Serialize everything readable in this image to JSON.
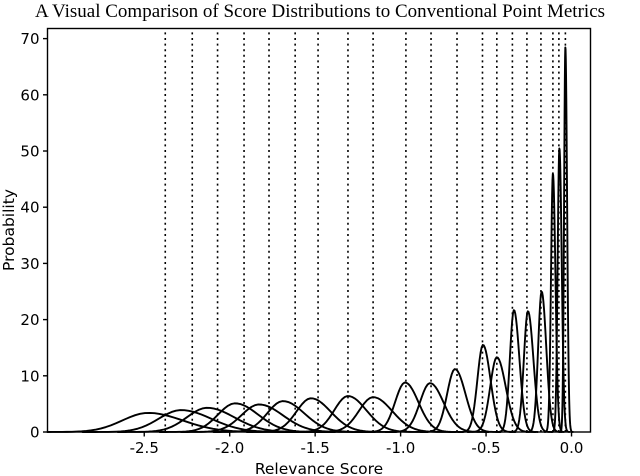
{
  "figure": {
    "title": "A Visual Comparison of Score Distributions to Conventional Point Metrics",
    "x_axis": {
      "label": "Relevance Score",
      "tick_labels": [
        "-2.5",
        "-2.0",
        "-1.5",
        "-1.0",
        "-0.5",
        "0.0"
      ],
      "tick_values": [
        -2.5,
        -2.0,
        -1.5,
        -1.0,
        -0.5,
        0.0
      ]
    },
    "y_axis": {
      "label": "Probability",
      "tick_labels": [
        "0",
        "10",
        "20",
        "30",
        "40",
        "50",
        "60",
        "70"
      ],
      "tick_values": [
        0,
        10,
        20,
        30,
        40,
        50,
        60,
        70
      ]
    },
    "colors": {
      "line": "#000000",
      "dotted_line": "#000000",
      "background": "#ffffff"
    }
  },
  "chart_data": {
    "type": "line",
    "title": "A Visual Comparison of Score Distributions to Conventional Point Metrics",
    "xlabel": "Relevance Score",
    "ylabel": "Probability",
    "xlim": [
      -3.066,
      0.111
    ],
    "ylim": [
      0,
      71.8
    ],
    "grid": false,
    "legend": "none",
    "description": "Twenty unfilled black probability-density curves (score distributions), one per ranked item, growing taller and narrower as relevance score approaches 0; a vertical dotted line marks each conventional point-metric value.",
    "point_metric_lines": [
      -2.377,
      -2.219,
      -2.071,
      -1.916,
      -1.77,
      -1.617,
      -1.483,
      -1.308,
      -1.161,
      -0.969,
      -0.822,
      -0.67,
      -0.521,
      -0.437,
      -0.346,
      -0.261,
      -0.179,
      -0.109,
      -0.074,
      -0.036
    ],
    "distributions": [
      {
        "mode": -2.477,
        "peak": 3.4,
        "sigma": 0.171
      },
      {
        "mode": -2.284,
        "peak": 3.9,
        "sigma": 0.149
      },
      {
        "mode": -2.132,
        "peak": 4.3,
        "sigma": 0.135
      },
      {
        "mode": -1.968,
        "peak": 5.1,
        "sigma": 0.114
      },
      {
        "mode": -1.828,
        "peak": 4.9,
        "sigma": 0.118
      },
      {
        "mode": -1.688,
        "peak": 5.5,
        "sigma": 0.105
      },
      {
        "mode": -1.524,
        "peak": 6.0,
        "sigma": 0.097
      },
      {
        "mode": -1.308,
        "peak": 6.4,
        "sigma": 0.091
      },
      {
        "mode": -1.161,
        "peak": 6.2,
        "sigma": 0.094
      },
      {
        "mode": -0.974,
        "peak": 8.8,
        "sigma": 0.066
      },
      {
        "mode": -0.828,
        "peak": 8.7,
        "sigma": 0.067
      },
      {
        "mode": -0.682,
        "peak": 11.2,
        "sigma": 0.052
      },
      {
        "mode": -0.518,
        "peak": 15.5,
        "sigma": 0.037
      },
      {
        "mode": -0.437,
        "peak": 13.3,
        "sigma": 0.044
      },
      {
        "mode": -0.337,
        "peak": 21.7,
        "sigma": 0.027
      },
      {
        "mode": -0.255,
        "peak": 21.5,
        "sigma": 0.027
      },
      {
        "mode": -0.175,
        "peak": 25.0,
        "sigma": 0.023
      },
      {
        "mode": -0.109,
        "peak": 46.0,
        "sigma": 0.0126
      },
      {
        "mode": -0.071,
        "peak": 50.5,
        "sigma": 0.0115
      },
      {
        "mode": -0.036,
        "peak": 68.5,
        "sigma": 0.0085
      }
    ],
    "skew": {
      "sigma_left_mult": 0.88,
      "sigma_right_mult": 1.18
    }
  }
}
